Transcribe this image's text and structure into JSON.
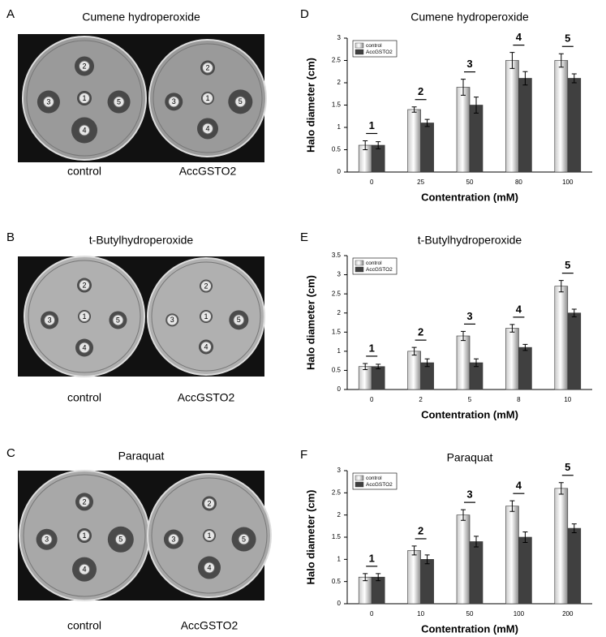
{
  "photo_panels": [
    {
      "letter": "A",
      "title": "Cumene hydroperoxide",
      "labels": [
        "control",
        "AccGSTO2"
      ],
      "disk_labels": [
        "1",
        "2",
        "3",
        "4",
        "5"
      ]
    },
    {
      "letter": "B",
      "title": "t-Butylhydroperoxide",
      "labels": [
        "control",
        "AccGSTO2"
      ],
      "disk_labels": [
        "1",
        "2",
        "3",
        "4",
        "5"
      ]
    },
    {
      "letter": "C",
      "title": "Paraquat",
      "labels": [
        "control",
        "AccGSTO2"
      ],
      "disk_labels": [
        "1",
        "2",
        "3",
        "4",
        "5"
      ]
    }
  ],
  "chart_data": [
    {
      "type": "bar",
      "letter": "D",
      "title": "Cumene hydroperoxide",
      "y_label": "Halo diameter (cm)",
      "x_label": "Contentration (mM)",
      "categories": [
        "0",
        "25",
        "50",
        "80",
        "100"
      ],
      "group_labels": [
        "1",
        "2",
        "3",
        "4",
        "5"
      ],
      "series": [
        {
          "name": "control",
          "color": "#c8c8c8",
          "values": [
            0.6,
            1.4,
            1.9,
            2.5,
            2.5
          ],
          "errors": [
            0.1,
            0.06,
            0.18,
            0.18,
            0.15
          ]
        },
        {
          "name": "AccGSTO2",
          "color": "#404040",
          "values": [
            0.6,
            1.1,
            1.5,
            2.1,
            2.1
          ],
          "errors": [
            0.08,
            0.08,
            0.18,
            0.15,
            0.1
          ]
        }
      ],
      "ylim": [
        0,
        3
      ],
      "yticks": [
        0,
        0.5,
        1,
        1.5,
        2,
        2.5,
        3
      ],
      "legend": "top-left"
    },
    {
      "type": "bar",
      "letter": "E",
      "title": "t-Butylhydroperoxide",
      "y_label": "Halo diameter (cm)",
      "x_label": "Contentration (mM)",
      "categories": [
        "0",
        "2",
        "5",
        "8",
        "10"
      ],
      "group_labels": [
        "1",
        "2",
        "3",
        "4",
        "5"
      ],
      "series": [
        {
          "name": "control",
          "color": "#c8c8c8",
          "values": [
            0.6,
            1.0,
            1.4,
            1.6,
            2.7
          ],
          "errors": [
            0.08,
            0.1,
            0.12,
            0.1,
            0.15
          ]
        },
        {
          "name": "AccGSTO2",
          "color": "#404040",
          "values": [
            0.6,
            0.7,
            0.7,
            1.1,
            2.0
          ],
          "errors": [
            0.06,
            0.1,
            0.1,
            0.08,
            0.1
          ]
        }
      ],
      "ylim": [
        0,
        3.5
      ],
      "yticks": [
        0,
        0.5,
        1,
        1.5,
        2,
        2.5,
        3,
        3.5
      ],
      "legend": "top-left"
    },
    {
      "type": "bar",
      "letter": "F",
      "title": "Paraquat",
      "y_label": "Halo diameter (cm)",
      "x_label": "Contentration (mM)",
      "categories": [
        "0",
        "10",
        "50",
        "100",
        "200"
      ],
      "group_labels": [
        "1",
        "2",
        "3",
        "4",
        "5"
      ],
      "series": [
        {
          "name": "control",
          "color": "#c8c8c8",
          "values": [
            0.6,
            1.2,
            2.0,
            2.2,
            2.6
          ],
          "errors": [
            0.08,
            0.1,
            0.12,
            0.12,
            0.13
          ]
        },
        {
          "name": "AccGSTO2",
          "color": "#404040",
          "values": [
            0.6,
            1.0,
            1.4,
            1.5,
            1.7
          ],
          "errors": [
            0.08,
            0.1,
            0.12,
            0.12,
            0.1
          ]
        }
      ],
      "ylim": [
        0,
        3
      ],
      "yticks": [
        0,
        0.5,
        1,
        1.5,
        2,
        2.5,
        3
      ],
      "legend": "top-left"
    }
  ]
}
